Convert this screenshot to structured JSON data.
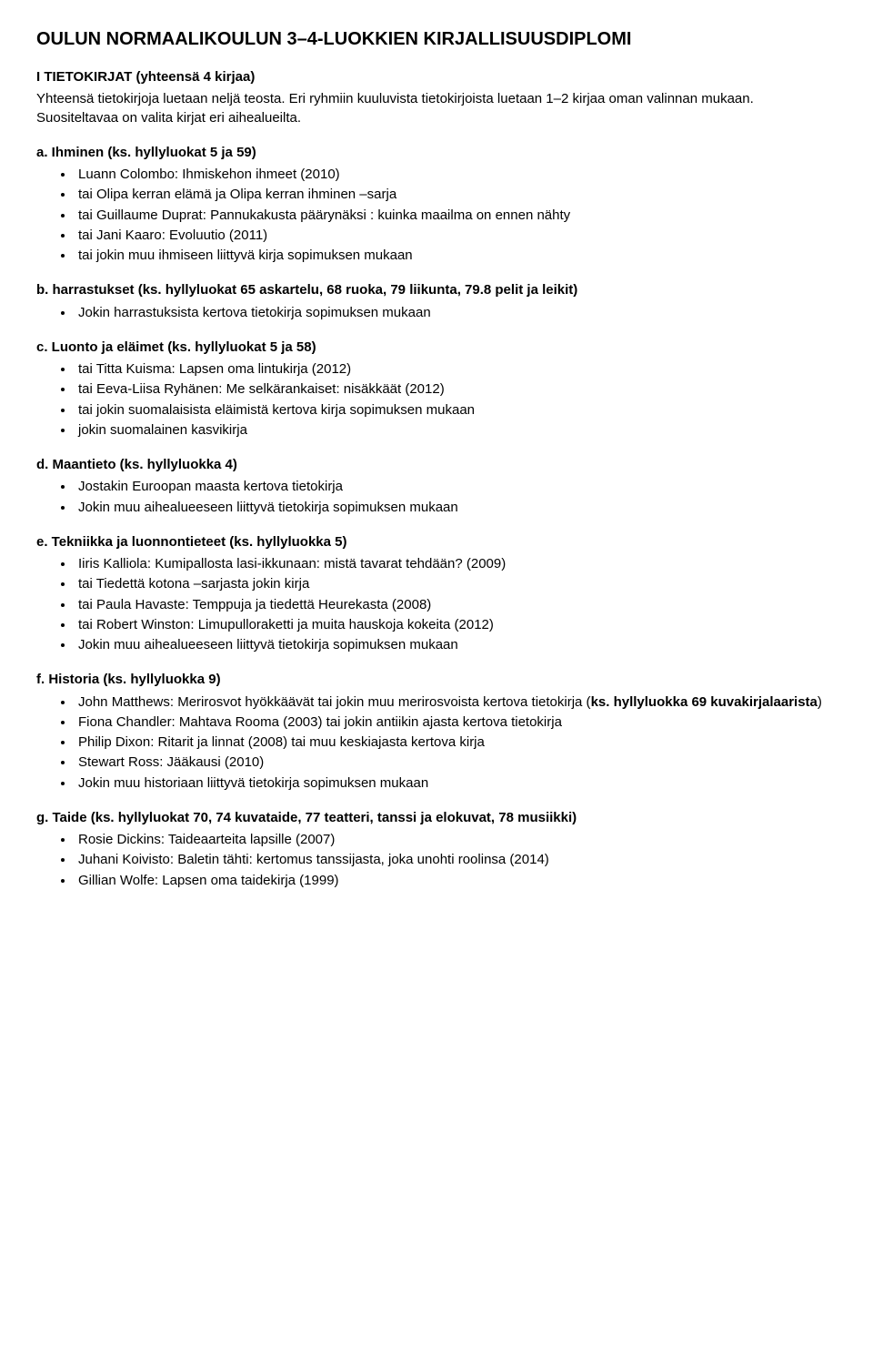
{
  "title": "OULUN NORMAALIKOULUN 3–4-LUOKKIEN KIRJALLISUUSDIPLOMI",
  "section1": {
    "heading": "I TIETOKIRJAT (yhteensä 4 kirjaa)",
    "intro": "Yhteensä tietokirjoja luetaan neljä teosta. Eri ryhmiin kuuluvista tietokirjoista luetaan 1–2 kirjaa oman valinnan mukaan. Suositeltavaa on valita kirjat eri aihealueilta.",
    "a": {
      "heading": "a.  Ihminen (ks. hyllyluokat 5 ja 59)",
      "items": [
        "Luann Colombo: Ihmiskehon ihmeet (2010)",
        "tai Olipa kerran elämä ja Olipa kerran ihminen –sarja",
        "tai Guillaume Duprat: Pannukakusta päärynäksi : kuinka maailma on ennen nähty",
        "tai Jani Kaaro: Evoluutio (2011)",
        "tai jokin muu ihmiseen liittyvä kirja sopimuksen mukaan"
      ]
    },
    "b": {
      "heading": "b.  harrastukset (ks. hyllyluokat 65 askartelu, 68 ruoka, 79 liikunta, 79.8 pelit ja leikit)",
      "items": [
        "Jokin harrastuksista kertova tietokirja sopimuksen mukaan"
      ]
    },
    "c": {
      "heading": "c.  Luonto ja eläimet (ks. hyllyluokat 5 ja 58)",
      "items": [
        "tai Titta Kuisma: Lapsen oma lintukirja (2012)",
        "tai Eeva-Liisa Ryhänen: Me selkärankaiset: nisäkkäät (2012)",
        "tai jokin suomalaisista eläimistä kertova kirja sopimuksen mukaan",
        "jokin suomalainen kasvikirja"
      ]
    },
    "d": {
      "heading": "d.  Maantieto (ks. hyllyluokka 4)",
      "items": [
        "Jostakin Euroopan maasta kertova tietokirja",
        "Jokin muu aihealueeseen liittyvä tietokirja sopimuksen mukaan"
      ]
    },
    "e": {
      "heading": "e.  Tekniikka ja luonnontieteet (ks. hyllyluokka 5)",
      "items": [
        "Iiris Kalliola: Kumipallosta lasi-ikkunaan: mistä tavarat tehdään? (2009)",
        "tai Tiedettä kotona –sarjasta jokin kirja",
        "tai Paula Havaste: Temppuja ja tiedettä Heurekasta (2008)",
        "tai Robert Winston: Limupulloraketti ja muita hauskoja kokeita (2012)",
        "Jokin muu aihealueeseen liittyvä tietokirja sopimuksen mukaan"
      ]
    },
    "f": {
      "heading": "f.  Historia (ks. hyllyluokka 9)",
      "item1_pre": "John Matthews: Merirosvot hyökkäävät tai jokin muu merirosvoista kertova tietokirja (",
      "item1_bold": "ks. hyllyluokka 69 kuvakirjalaarista",
      "item1_post": ")",
      "items_rest": [
        "Fiona Chandler: Mahtava Rooma (2003) tai jokin antiikin ajasta kertova tietokirja",
        "Philip Dixon: Ritarit ja linnat (2008) tai muu keskiajasta kertova kirja",
        "Stewart Ross: Jääkausi (2010)",
        "Jokin muu historiaan liittyvä tietokirja sopimuksen mukaan"
      ]
    },
    "g": {
      "heading": "g.  Taide (ks. hyllyluokat 70, 74 kuvataide, 77 teatteri, tanssi ja elokuvat, 78 musiikki)",
      "items": [
        "Rosie Dickins: Taideaarteita lapsille (2007)",
        "Juhani Koivisto: Baletin tähti: kertomus tanssijasta, joka unohti roolinsa (2014)",
        "Gillian Wolfe: Lapsen oma taidekirja (1999)"
      ]
    }
  }
}
